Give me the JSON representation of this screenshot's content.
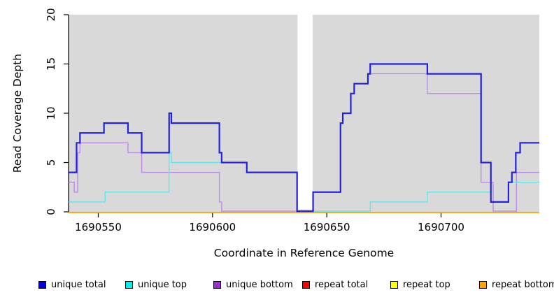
{
  "figure": {
    "plot_background": "#D9D9D9",
    "page_background": "#FFFFFF",
    "axis_color": "#000000"
  },
  "chart_data": {
    "type": "line",
    "step": true,
    "title": "",
    "xlabel": "Coordinate in Reference Genome",
    "ylabel": "Read Coverage Depth",
    "xlim": [
      1690537,
      1690743
    ],
    "ylim": [
      0,
      20
    ],
    "x_ticks": [
      1690550,
      1690600,
      1690650,
      1690700
    ],
    "y_ticks": [
      0,
      5,
      10,
      15,
      20
    ],
    "grid": false,
    "legend_position": "bottom",
    "gap_region": {
      "x_start": 1690637.2,
      "x_end": 1690643.8
    },
    "series": [
      {
        "name": "repeat total",
        "color": "#DD0000",
        "width": 1.4,
        "points": [
          [
            1690537,
            0
          ]
        ]
      },
      {
        "name": "repeat top",
        "color": "#FFFF00",
        "width": 1.4,
        "points": [
          [
            1690537,
            0
          ]
        ]
      },
      {
        "name": "repeat bottom",
        "color": "#FFA500",
        "width": 1.8,
        "points": [
          [
            1690537,
            0
          ]
        ]
      },
      {
        "name": "unique bottom",
        "color": "#BB8BE5",
        "width": 1.4,
        "points": [
          [
            1690537,
            3
          ],
          [
            1690539.5,
            2
          ],
          [
            1690541,
            6
          ],
          [
            1690542,
            7
          ],
          [
            1690563,
            6
          ],
          [
            1690569,
            4
          ],
          [
            1690603,
            1
          ],
          [
            1690604,
            0
          ],
          [
            1690644,
            2
          ],
          [
            1690656,
            9
          ],
          [
            1690657,
            10
          ],
          [
            1690660.5,
            12
          ],
          [
            1690662,
            13
          ],
          [
            1690668,
            14
          ],
          [
            1690694,
            12
          ],
          [
            1690717.5,
            3
          ],
          [
            1690722.8,
            0
          ],
          [
            1690733,
            4
          ]
        ]
      },
      {
        "name": "unique top",
        "color": "#5FE6EC",
        "width": 1.4,
        "points": [
          [
            1690537,
            1
          ],
          [
            1690553,
            2
          ],
          [
            1690581,
            6
          ],
          [
            1690582,
            5
          ],
          [
            1690615,
            4
          ],
          [
            1690637,
            0
          ],
          [
            1690669,
            1
          ],
          [
            1690694,
            2
          ],
          [
            1690721.8,
            1
          ],
          [
            1690729.5,
            3
          ]
        ]
      },
      {
        "name": "unique total",
        "color": "#2121E2",
        "width": 2.2,
        "points": [
          [
            1690537,
            4
          ],
          [
            1690540.5,
            7
          ],
          [
            1690542,
            8
          ],
          [
            1690552.5,
            9
          ],
          [
            1690563,
            8
          ],
          [
            1690569,
            6
          ],
          [
            1690581,
            10
          ],
          [
            1690582,
            9
          ],
          [
            1690603,
            6
          ],
          [
            1690604,
            5
          ],
          [
            1690615,
            4
          ],
          [
            1690637,
            0
          ],
          [
            1690644,
            2
          ],
          [
            1690656,
            9
          ],
          [
            1690657,
            10
          ],
          [
            1690660.5,
            12
          ],
          [
            1690662,
            13
          ],
          [
            1690668,
            14
          ],
          [
            1690669,
            15
          ],
          [
            1690694,
            14
          ],
          [
            1690717.5,
            5
          ],
          [
            1690721.8,
            1
          ],
          [
            1690729.5,
            3
          ],
          [
            1690731,
            4
          ],
          [
            1690732.7,
            6
          ],
          [
            1690734.6,
            7
          ]
        ]
      }
    ],
    "legend": [
      {
        "label": "unique total",
        "color": "#0000E0"
      },
      {
        "label": "unique top",
        "color": "#00EEEE"
      },
      {
        "label": "unique bottom",
        "color": "#9932CC"
      },
      {
        "label": "repeat total",
        "color": "#FF0000"
      },
      {
        "label": "repeat top",
        "color": "#FFFF00"
      },
      {
        "label": "repeat bottom",
        "color": "#FFA500"
      }
    ]
  }
}
